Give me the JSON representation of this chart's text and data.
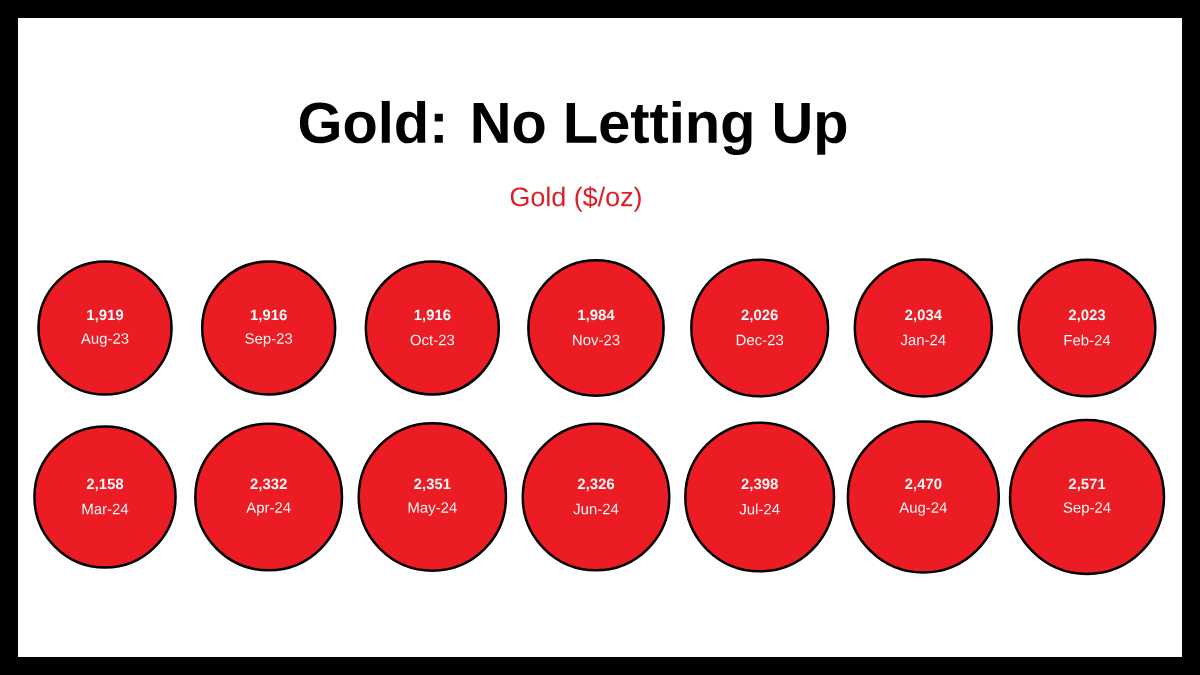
{
  "chart_data": {
    "type": "other",
    "title": "Gold: No Letting Up",
    "subtitle": "Gold ($/oz)",
    "categories": [
      "Aug-23",
      "Sep-23",
      "Oct-23",
      "Nov-23",
      "Dec-23",
      "Jan-24",
      "Feb-24",
      "Mar-24",
      "Apr-24",
      "May-24",
      "Jun-24",
      "Jul-24",
      "Aug-24",
      "Sep-24"
    ],
    "values": [
      1919,
      1916,
      1916,
      1984,
      2026,
      2034,
      2023,
      2158,
      2332,
      2351,
      2326,
      2398,
      2470,
      2571
    ],
    "value_labels": [
      "1,919",
      "1,916",
      "1,916",
      "1,984",
      "2,026",
      "2,034",
      "2,023",
      "2,158",
      "2,332",
      "2,351",
      "2,326",
      "2,398",
      "2,470",
      "2,571"
    ],
    "color": "#ec1c24"
  }
}
